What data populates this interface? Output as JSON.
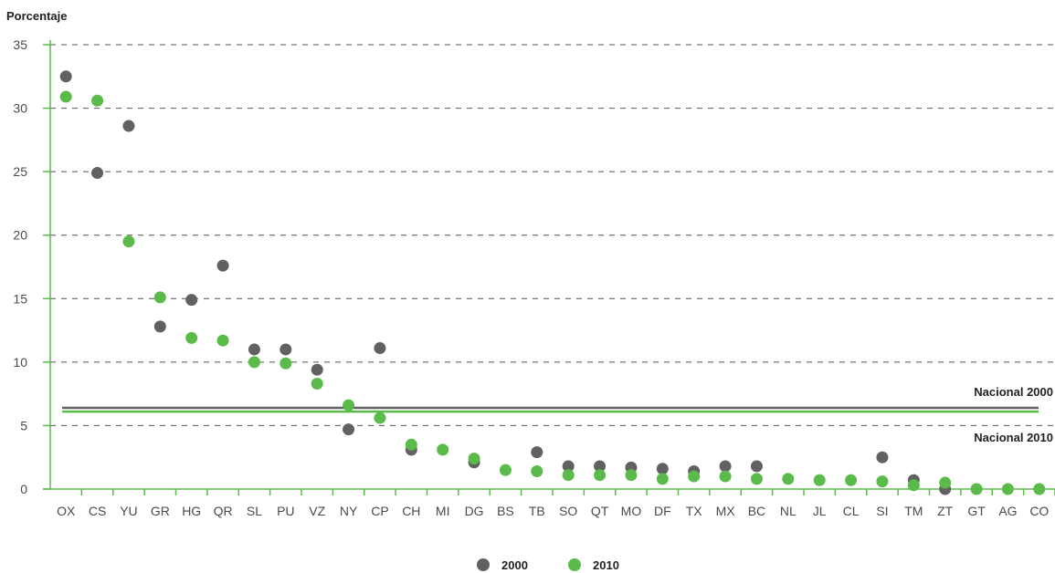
{
  "chart_data": {
    "type": "scatter",
    "ylabel": "Porcentaje",
    "ylim": [
      0,
      35
    ],
    "yticks": [
      0,
      5,
      10,
      15,
      20,
      25,
      30,
      35
    ],
    "grid": "dashed horizontal",
    "categories": [
      "OX",
      "CS",
      "YU",
      "GR",
      "HG",
      "QR",
      "SL",
      "PU",
      "VZ",
      "NY",
      "CP",
      "CH",
      "MI",
      "DG",
      "BS",
      "TB",
      "SO",
      "QT",
      "MO",
      "DF",
      "TX",
      "MX",
      "BC",
      "NL",
      "JL",
      "CL",
      "SI",
      "TM",
      "ZT",
      "GT",
      "AG",
      "CO"
    ],
    "series": [
      {
        "name": "2000",
        "color": "#616161",
        "values": [
          32.5,
          24.9,
          28.6,
          12.8,
          14.9,
          17.6,
          11.0,
          11.0,
          9.4,
          4.7,
          11.1,
          3.1,
          null,
          2.1,
          null,
          2.9,
          1.8,
          1.8,
          1.7,
          1.6,
          1.4,
          1.8,
          1.8,
          null,
          null,
          null,
          2.5,
          0.7,
          0.0,
          null,
          null,
          null
        ]
      },
      {
        "name": "2010",
        "color": "#5abb4b",
        "values": [
          30.9,
          30.6,
          19.5,
          15.1,
          11.9,
          11.7,
          10.0,
          9.9,
          8.3,
          6.6,
          5.6,
          3.5,
          3.1,
          2.4,
          1.5,
          1.4,
          1.1,
          1.1,
          1.1,
          0.8,
          1.0,
          1.0,
          0.8,
          0.8,
          0.7,
          0.7,
          0.6,
          0.3,
          0.5,
          0.0,
          0.0,
          0.0
        ]
      }
    ],
    "reference_lines": [
      {
        "label": "Nacional 2000",
        "value": 6.4,
        "color": "#616161"
      },
      {
        "label": "Nacional 2010",
        "value": 6.1,
        "color": "#5abb4b"
      }
    ],
    "legend": {
      "position": "bottom-center",
      "entries": [
        "2000",
        "2010"
      ]
    }
  }
}
